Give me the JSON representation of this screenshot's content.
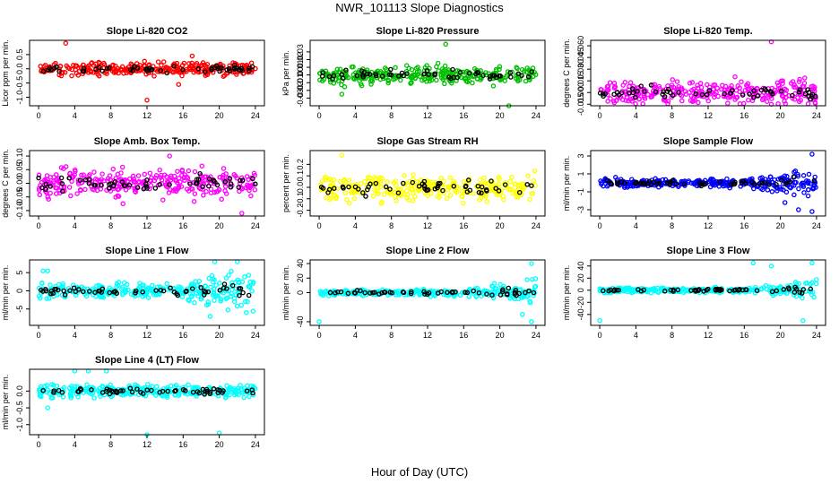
{
  "figure": {
    "title": "NWR_101113  Slope Diagnostics",
    "xlabel": "Hour of Day (UTC)"
  },
  "chart_data": [
    {
      "type": "scatter",
      "title": "Slope Li-820 CO2",
      "ylabel": "Licor ppm per min.",
      "color": "#ff0000",
      "ylim": [
        -1.3,
        1.0
      ],
      "yticks": [
        -1.0,
        -0.5,
        0.0,
        0.5
      ],
      "tick_labels": [
        "-1.0",
        "-0.5",
        "0.0",
        "0.5"
      ],
      "xlim": [
        -1,
        25
      ],
      "xticks": [
        0,
        4,
        8,
        12,
        16,
        20,
        24
      ],
      "spread": 0.15,
      "outliers": [
        [
          3,
          0.9
        ],
        [
          12,
          -1.1
        ],
        [
          15.5,
          -0.55
        ],
        [
          17,
          0.45
        ]
      ],
      "fan": false
    },
    {
      "type": "scatter",
      "title": "Slope Li-820 Pressure",
      "ylabel": "kPa per min.",
      "color": "#00c000",
      "ylim": [
        -0.04,
        0.045
      ],
      "yticks": [
        -0.03,
        -0.02,
        -0.01,
        0.0,
        0.01,
        0.02,
        0.03
      ],
      "tick_labels": [
        "-0.03",
        "-0.02",
        "-0.01",
        "0.00",
        "0.01",
        "0.02",
        "0.03"
      ],
      "xlim": [
        -1,
        25
      ],
      "xticks": [
        0,
        4,
        8,
        12,
        16,
        20,
        24
      ],
      "spread": 0.008,
      "outliers": [
        [
          14,
          0.04
        ],
        [
          21,
          -0.04
        ],
        [
          2.5,
          -0.025
        ]
      ],
      "fan": false
    },
    {
      "type": "scatter",
      "title": "Slope Li-820 Temp.",
      "ylabel": "degrees C per min.",
      "color": "#ff00ff",
      "ylim": [
        -0.017,
        0.067
      ],
      "yticks": [
        -0.015,
        0.0,
        0.015,
        0.03,
        0.045,
        0.06
      ],
      "tick_labels": [
        "-0.015",
        "0.000",
        "0.015",
        "0.030",
        "0.045",
        "0.060"
      ],
      "xlim": [
        -1,
        25
      ],
      "xticks": [
        0,
        4,
        8,
        12,
        16,
        20,
        24
      ],
      "spread": 0.01,
      "outliers": [
        [
          19,
          0.065
        ],
        [
          19,
          -0.015
        ]
      ],
      "fan": false
    },
    {
      "type": "scatter",
      "title": "Slope Amb. Box Temp.",
      "ylabel": "degrees C per min.",
      "color": "#ff00ff",
      "ylim": [
        -0.12,
        0.12
      ],
      "yticks": [
        -0.1,
        -0.05,
        0.0,
        0.05,
        0.1
      ],
      "tick_labels": [
        "-0.10",
        "-0.05",
        "0.00",
        "0.05",
        "0.10"
      ],
      "xlim": [
        -1,
        25
      ],
      "xticks": [
        0,
        4,
        8,
        12,
        16,
        20,
        24
      ],
      "spread": 0.035,
      "outliers": [
        [
          22.5,
          -0.11
        ],
        [
          14.5,
          0.1
        ]
      ],
      "fan": false
    },
    {
      "type": "scatter",
      "title": "Slope Gas Stream RH",
      "ylabel": "percent per min.",
      "color": "#ffff00",
      "ylim": [
        -0.25,
        0.32
      ],
      "yticks": [
        -0.2,
        -0.1,
        0.0,
        0.1,
        0.2
      ],
      "tick_labels": [
        "-0.2",
        "-0.1",
        "0.0",
        "0.1",
        "0.2"
      ],
      "xlim": [
        -1,
        25
      ],
      "xticks": [
        0,
        4,
        8,
        12,
        16,
        20,
        24
      ],
      "spread": 0.08,
      "outliers": [
        [
          2.5,
          0.28
        ]
      ],
      "fan": false
    },
    {
      "type": "scatter",
      "title": "Slope Sample Flow",
      "ylabel": "ml/min per min.",
      "color": "#0000ff",
      "ylim": [
        -3.7,
        3.6
      ],
      "yticks": [
        -3,
        -1,
        1,
        3
      ],
      "tick_labels": [
        "-3",
        "-1",
        "1",
        "3"
      ],
      "xlim": [
        -1,
        25
      ],
      "xticks": [
        0,
        4,
        8,
        12,
        16,
        20,
        24
      ],
      "spread": 0.3,
      "outliers": [
        [
          20.5,
          -2.2
        ],
        [
          22,
          -3.0
        ],
        [
          23.5,
          3.2
        ],
        [
          23.5,
          -3.2
        ]
      ],
      "fan": true
    },
    {
      "type": "scatter",
      "title": "Slope Line 1 Flow",
      "ylabel": "ml/min per min.",
      "color": "#00ffff",
      "ylim": [
        -9.5,
        8.5
      ],
      "yticks": [
        -5,
        0,
        5
      ],
      "tick_labels": [
        "-5",
        "0",
        "5"
      ],
      "xlim": [
        -1,
        25
      ],
      "xticks": [
        0,
        4,
        8,
        12,
        16,
        20,
        24
      ],
      "spread": 1.3,
      "outliers": [
        [
          19,
          -7
        ],
        [
          19.5,
          8
        ],
        [
          22,
          8
        ],
        [
          23,
          -6
        ],
        [
          0.5,
          5.5
        ],
        [
          1,
          5.5
        ]
      ],
      "fan": true
    },
    {
      "type": "scatter",
      "title": "Slope Line 2 Flow",
      "ylabel": "ml/min per min.",
      "color": "#00ffff",
      "ylim": [
        -45,
        45
      ],
      "yticks": [
        -40,
        0,
        20,
        40
      ],
      "tick_labels": [
        "-40",
        "0",
        "20",
        "40"
      ],
      "xlim": [
        -1,
        25
      ],
      "xticks": [
        0,
        4,
        8,
        12,
        16,
        20,
        24
      ],
      "spread": 3,
      "outliers": [
        [
          22.5,
          -30
        ],
        [
          23.5,
          -40
        ],
        [
          23.5,
          40
        ],
        [
          0,
          -40
        ]
      ],
      "fan": true
    },
    {
      "type": "scatter",
      "title": "Slope Line 3 Flow",
      "ylabel": "ml/min per min.",
      "color": "#00ffff",
      "ylim": [
        -58,
        50
      ],
      "yticks": [
        -40,
        -20,
        0,
        20,
        40
      ],
      "tick_labels": [
        "-40",
        "-20",
        "0",
        "20",
        "40"
      ],
      "xlim": [
        -1,
        25
      ],
      "xticks": [
        0,
        4,
        8,
        12,
        16,
        20,
        24
      ],
      "spread": 3,
      "outliers": [
        [
          0,
          -50
        ],
        [
          22.5,
          -50
        ],
        [
          23.5,
          45
        ],
        [
          19,
          40
        ],
        [
          17,
          45
        ]
      ],
      "fan": true
    },
    {
      "type": "scatter",
      "title": "Slope Line 4 (LT) Flow",
      "ylabel": "ml/min per min.",
      "color": "#00ffff",
      "ylim": [
        -1.3,
        0.65
      ],
      "yticks": [
        -1.0,
        -0.5,
        0.0
      ],
      "tick_labels": [
        "-1.0",
        "-0.5",
        "0.0"
      ],
      "xlim": [
        -1,
        25
      ],
      "xticks": [
        0,
        4,
        8,
        12,
        16,
        20,
        24
      ],
      "spread": 0.12,
      "outliers": [
        [
          12,
          -1.3
        ],
        [
          20,
          -1.25
        ],
        [
          1,
          -0.5
        ],
        [
          4,
          0.6
        ],
        [
          5.5,
          0.6
        ],
        [
          7.5,
          0.6
        ]
      ],
      "fan": false
    }
  ]
}
